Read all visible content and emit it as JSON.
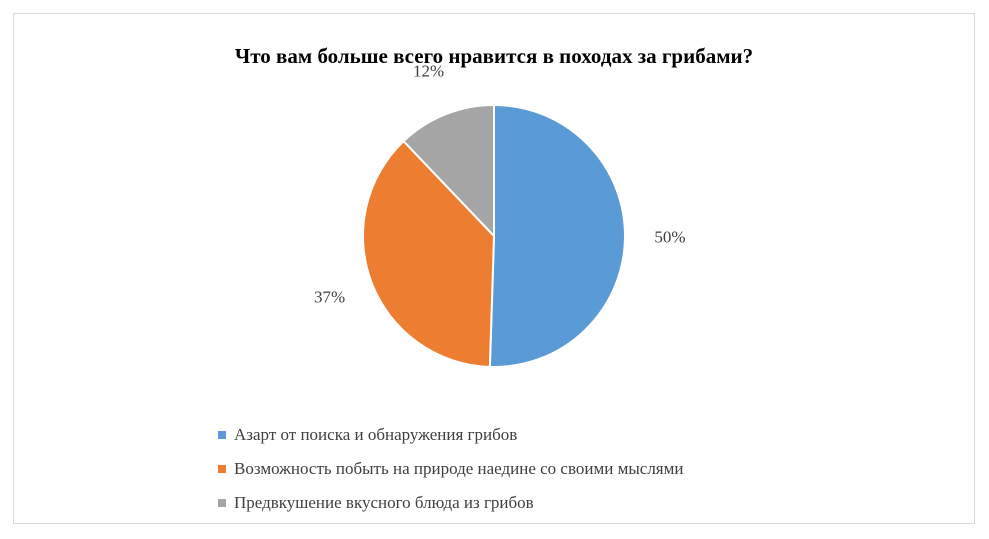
{
  "chart_data": {
    "type": "pie",
    "title": "Что вам больше всего нравится в походах за грибами?",
    "categories": [
      "Азарт от поиска и обнаружения грибов",
      "Возможность побыть на природе наедине со своими мыслями",
      "Предвкушение вкусного блюда из грибов"
    ],
    "values": [
      50,
      37,
      12
    ],
    "data_labels": [
      "50%",
      "37%",
      "12%"
    ],
    "colors": [
      "#5b9bd5",
      "#ed7d31",
      "#a5a5a5"
    ],
    "start_angle_deg": 0,
    "direction": "clockwise",
    "legend_position": "bottom",
    "grid": false
  }
}
